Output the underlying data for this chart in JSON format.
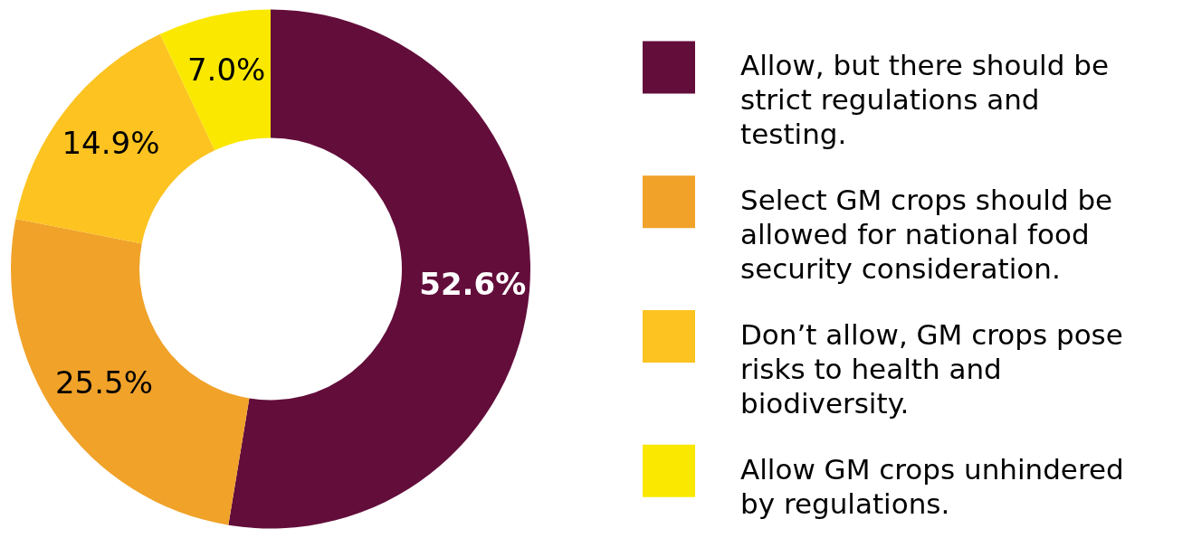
{
  "chart_data": {
    "type": "donut",
    "categories": [
      "Allow, but there should be strict regulations and testing.",
      "Select GM crops should be allowed for national food security consideration.",
      "Don’t allow, GM crops pose risks to health and biodiversity.",
      "Allow GM crops unhindered by regulations."
    ],
    "values": [
      52.6,
      25.5,
      14.9,
      7.0
    ],
    "colors": [
      "#630d3b",
      "#f0a229",
      "#fcc321",
      "#fae800"
    ],
    "value_labels": [
      "52.6%",
      "25.5%",
      "14.9%",
      "7.0%"
    ],
    "legend": "right"
  }
}
